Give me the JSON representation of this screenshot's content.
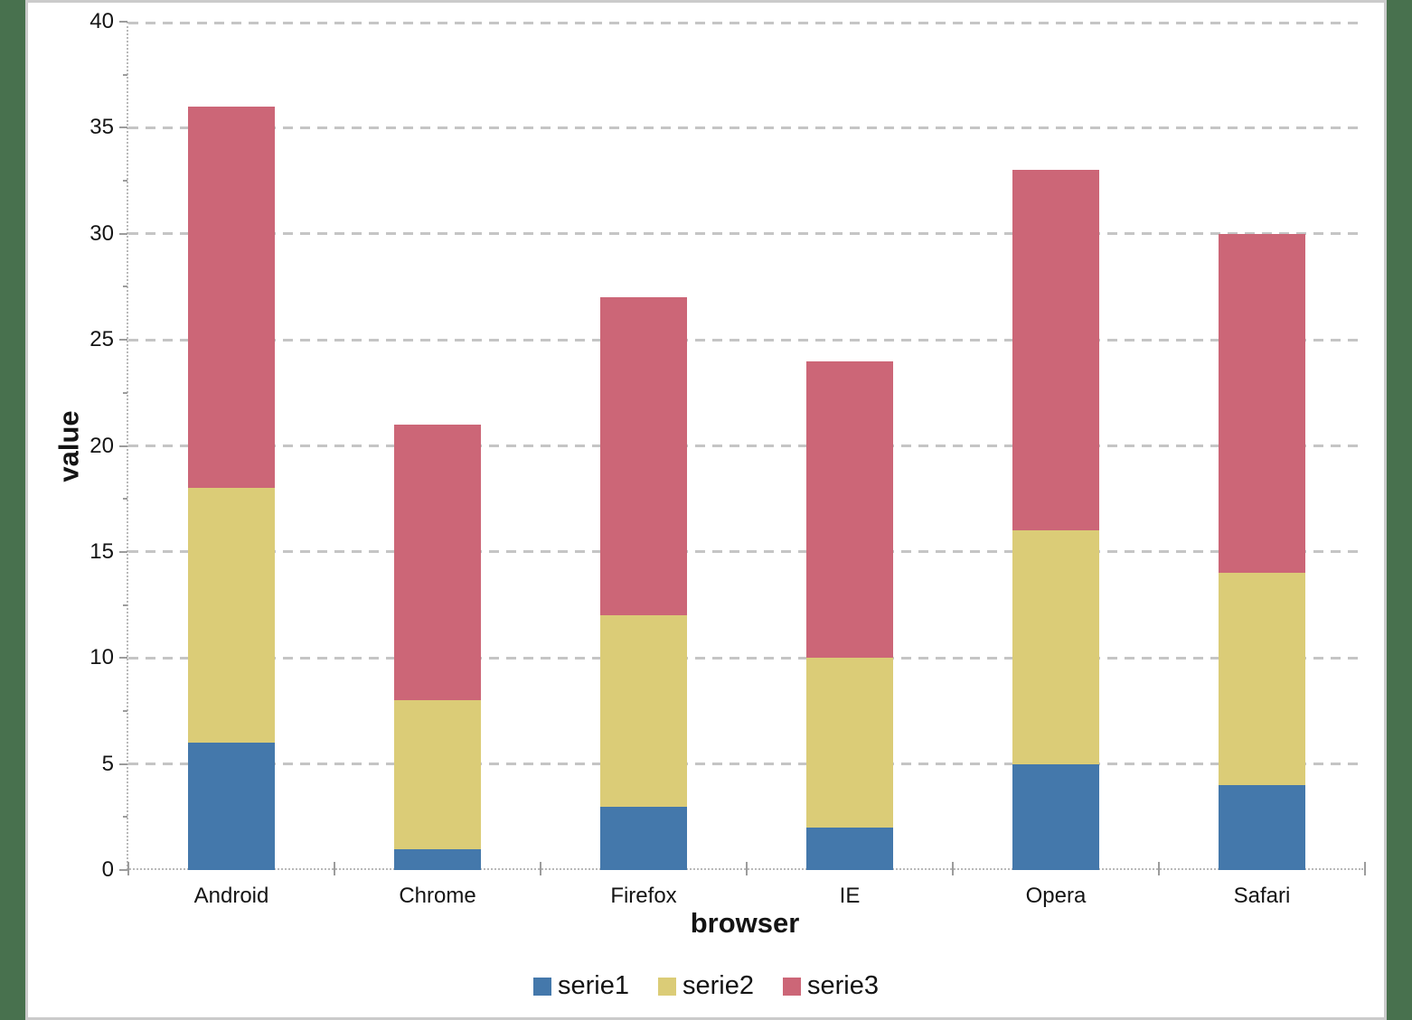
{
  "page": {
    "background_color": "#48714E",
    "panel_background": "#FFFFFF",
    "panel_border_color": "#CBCBCB"
  },
  "chart_data": {
    "type": "bar",
    "stacked": true,
    "title": "",
    "xlabel": "browser",
    "ylabel": "value",
    "categories": [
      "Android",
      "Chrome",
      "Firefox",
      "IE",
      "Opera",
      "Safari"
    ],
    "series": [
      {
        "name": "serie1",
        "color": "#4478AB",
        "values": [
          6,
          1,
          3,
          2,
          5,
          4
        ]
      },
      {
        "name": "serie2",
        "color": "#DBCC77",
        "values": [
          12,
          7,
          9,
          8,
          11,
          10
        ]
      },
      {
        "name": "serie3",
        "color": "#CC6677",
        "values": [
          18,
          13,
          15,
          14,
          17,
          16
        ]
      }
    ],
    "stack_totals": [
      36,
      21,
      27,
      24,
      33,
      30
    ],
    "ylim": [
      0,
      40
    ],
    "yticks": [
      0,
      5,
      10,
      15,
      20,
      25,
      30,
      35,
      40
    ],
    "y_minor_tick_step": 2.5,
    "grid": true,
    "gridline_style": "dashed",
    "legend_position": "bottom",
    "legend_labels": [
      "serie1",
      "serie2",
      "serie3"
    ]
  }
}
